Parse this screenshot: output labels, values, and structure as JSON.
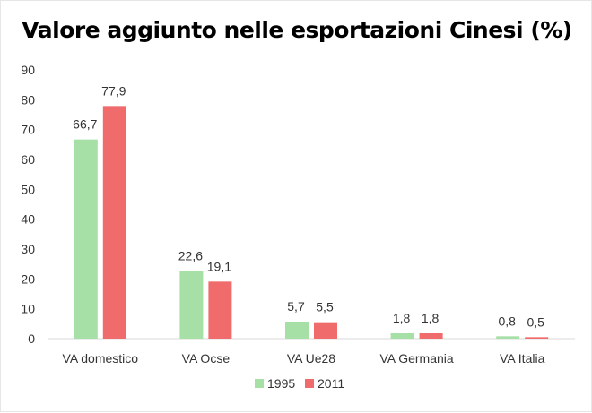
{
  "chart_data": {
    "type": "bar",
    "title": "Valore aggiunto nelle esportazioni Cinesi (%)",
    "categories": [
      "VA domestico",
      "VA Ocse",
      "VA Ue28",
      "VA Germania",
      "VA Italia"
    ],
    "series": [
      {
        "name": "1995",
        "color": "#a6e0a6",
        "values": [
          66.7,
          22.6,
          5.7,
          1.8,
          0.8
        ],
        "labels": [
          "66,7",
          "22,6",
          "5,7",
          "1,8",
          "0,8"
        ]
      },
      {
        "name": "2011",
        "color": "#f06b6b",
        "values": [
          77.9,
          19.1,
          5.5,
          1.8,
          0.5
        ],
        "labels": [
          "77,9",
          "19,1",
          "5,5",
          "1,8",
          "0,5"
        ]
      }
    ],
    "ylim": [
      0,
      90
    ],
    "yticks": [
      0,
      10,
      20,
      30,
      40,
      50,
      60,
      70,
      80,
      90
    ],
    "grid": false,
    "legend_position": "bottom"
  }
}
